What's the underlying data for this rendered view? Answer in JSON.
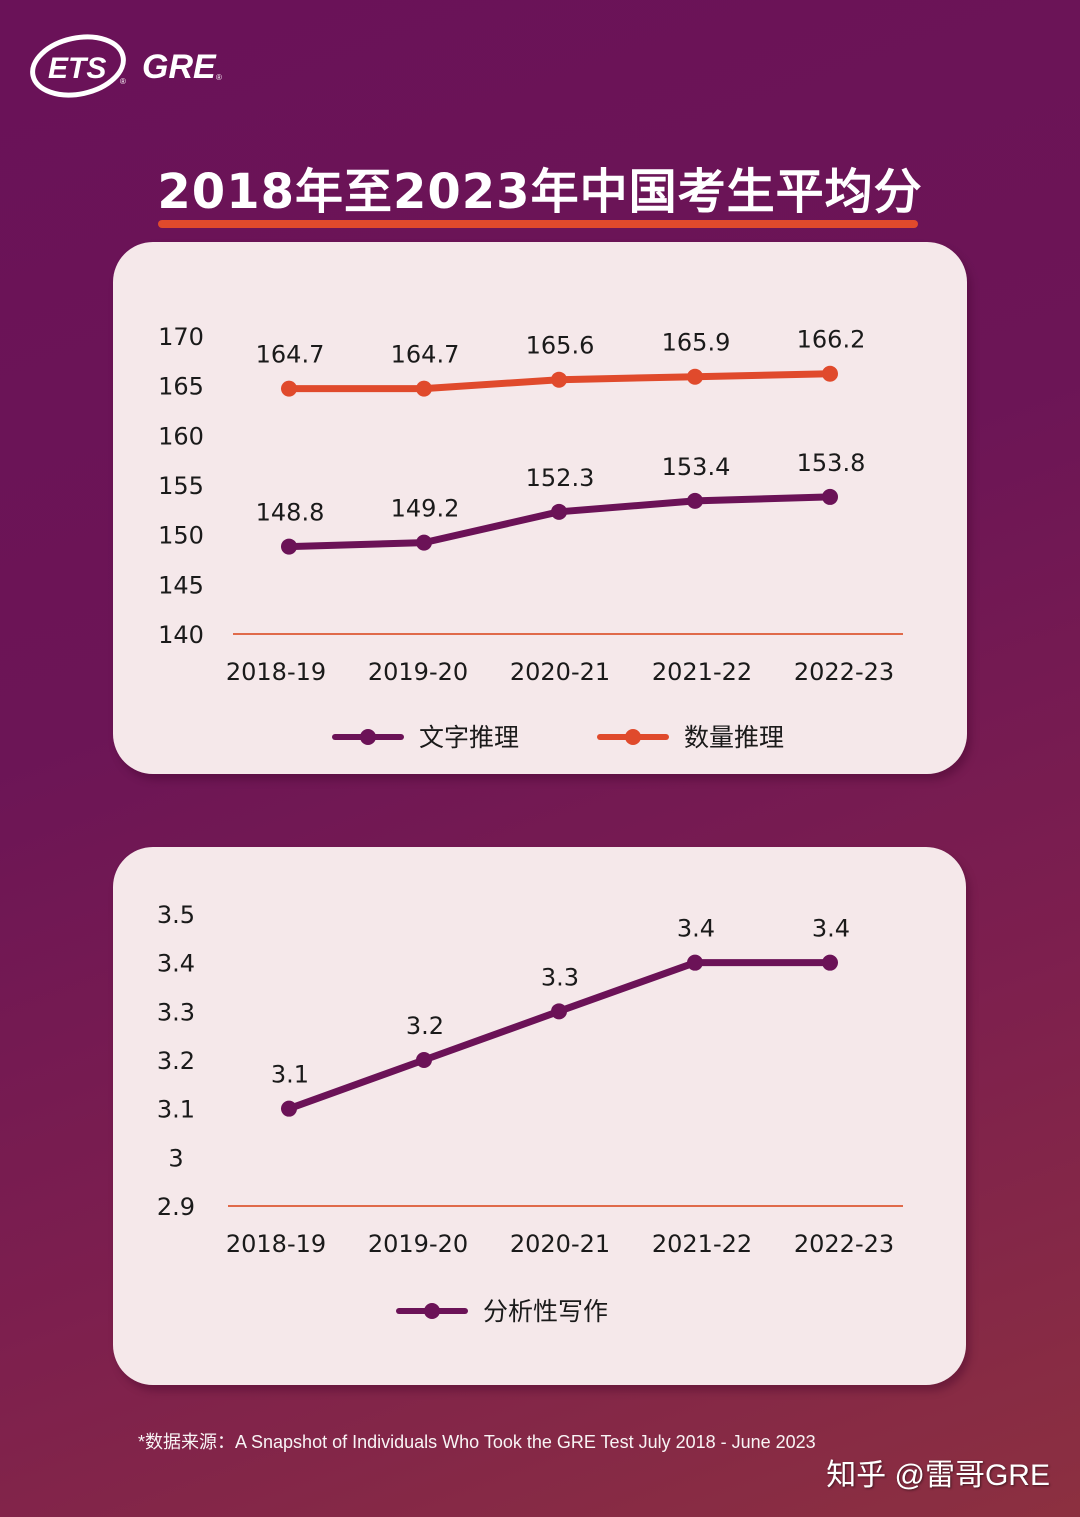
{
  "logo": {
    "left": "ETS",
    "right": "GRE",
    "registered": "®"
  },
  "title": "2018年至2023年中国考生平均分",
  "colors": {
    "verbal": "#6b1257",
    "quant": "#e04a2c",
    "axis_line": "#e06a4a",
    "card_bg": "#f5e8ea"
  },
  "chart_data": [
    {
      "type": "line",
      "title": "2018年至2023年中国考生平均分",
      "categories": [
        "2018-19",
        "2019-20",
        "2020-21",
        "2021-22",
        "2022-23"
      ],
      "series": [
        {
          "name": "文字推理",
          "values": [
            148.8,
            149.2,
            152.3,
            153.4,
            153.8
          ],
          "color": "#6b1257"
        },
        {
          "name": "数量推理",
          "values": [
            164.7,
            164.7,
            165.6,
            165.9,
            166.2
          ],
          "color": "#e04a2c"
        }
      ],
      "yticks": [
        "170",
        "165",
        "160",
        "155",
        "150",
        "145",
        "140"
      ],
      "ylim": [
        140,
        170
      ],
      "xlabel": "",
      "ylabel": "",
      "grid": false,
      "legend_position": "bottom",
      "data_labels": true
    },
    {
      "type": "line",
      "categories": [
        "2018-19",
        "2019-20",
        "2020-21",
        "2021-22",
        "2022-23"
      ],
      "series": [
        {
          "name": "分析性写作",
          "values": [
            3.1,
            3.2,
            3.3,
            3.4,
            3.4
          ],
          "color": "#6b1257"
        }
      ],
      "yticks": [
        "3.5",
        "3.4",
        "3.3",
        "3.2",
        "3.1",
        "3",
        "2.9"
      ],
      "ylim": [
        2.9,
        3.5
      ],
      "xlabel": "",
      "ylabel": "",
      "grid": false,
      "legend_position": "bottom",
      "data_labels": true
    }
  ],
  "source": "*数据来源：A Snapshot of Individuals Who Took the GRE Test July 2018 - June 2023",
  "watermark": "知乎 @雷哥GRE"
}
